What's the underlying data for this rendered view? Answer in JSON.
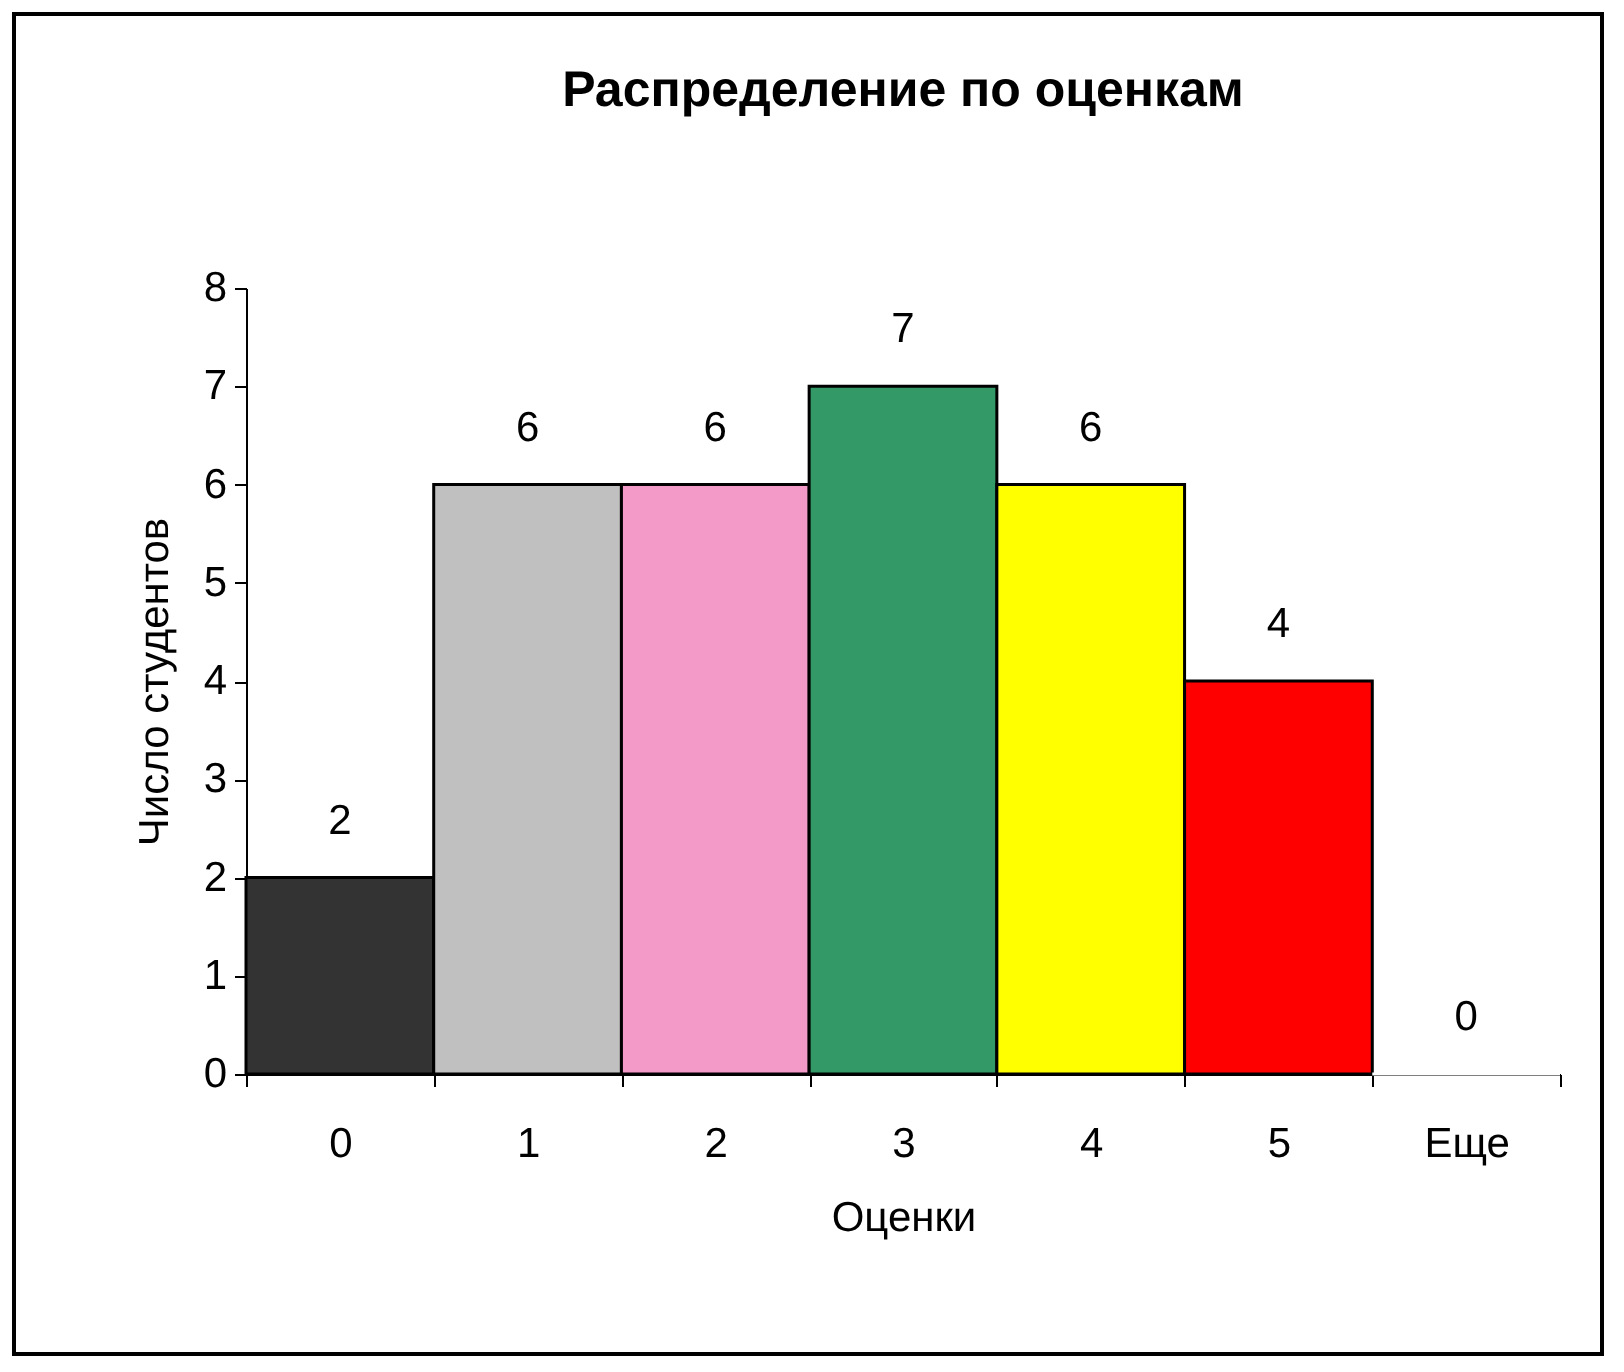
{
  "chart_data": {
    "type": "bar",
    "title": "Распределение по оценкам",
    "xlabel": "Оценки",
    "ylabel": "Число студентов",
    "categories": [
      "0",
      "1",
      "2",
      "3",
      "4",
      "5",
      "Еще"
    ],
    "values": [
      2,
      6,
      6,
      7,
      6,
      4,
      0
    ],
    "colors": [
      "#333333",
      "#c0c0c0",
      "#f49ac8",
      "#339966",
      "#ffff00",
      "#ff0000",
      "#ffffff"
    ],
    "ylim": [
      0,
      8
    ],
    "yticks": [
      0,
      1,
      2,
      3,
      4,
      5,
      6,
      7,
      8
    ],
    "data_labels": true,
    "grid": false
  }
}
